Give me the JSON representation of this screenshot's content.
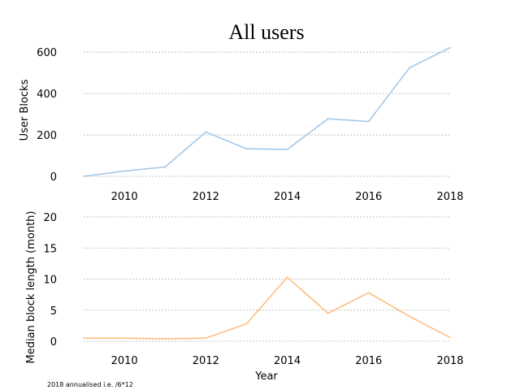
{
  "figure": {
    "title": "All users",
    "xlabel": "Year",
    "footnote": "2018 annualised i.e. /6*12"
  },
  "chart_data": [
    {
      "type": "line",
      "ylabel": "User Blocks",
      "x": [
        2009,
        2010,
        2011,
        2012,
        2013,
        2014,
        2015,
        2016,
        2017,
        2018
      ],
      "series": [
        {
          "values": [
            0,
            25,
            45,
            214,
            133,
            130,
            278,
            265,
            524,
            622
          ],
          "color": "#a6c8e8"
        }
      ],
      "xlim": [
        2009,
        2018
      ],
      "ylim": [
        0,
        640
      ],
      "xticks": [
        2010,
        2012,
        2014,
        2016,
        2018
      ],
      "yticks": [
        0,
        200,
        400,
        600
      ],
      "grid": "horizontal dashed"
    },
    {
      "type": "line",
      "ylabel": "Median block length (month)",
      "x": [
        2009,
        2010,
        2011,
        2012,
        2013,
        2014,
        2015,
        2016,
        2017,
        2018
      ],
      "series": [
        {
          "values": [
            0.5,
            0.5,
            0.4,
            0.5,
            2.8,
            10.3,
            4.5,
            7.8,
            4.0,
            0.6
          ],
          "color": "#fdbe7d"
        }
      ],
      "xlim": [
        2009,
        2018
      ],
      "ylim": [
        0,
        20
      ],
      "xticks": [
        2010,
        2012,
        2014,
        2016,
        2018
      ],
      "yticks": [
        0,
        5,
        10,
        15,
        20
      ],
      "grid": "horizontal dashed"
    }
  ]
}
